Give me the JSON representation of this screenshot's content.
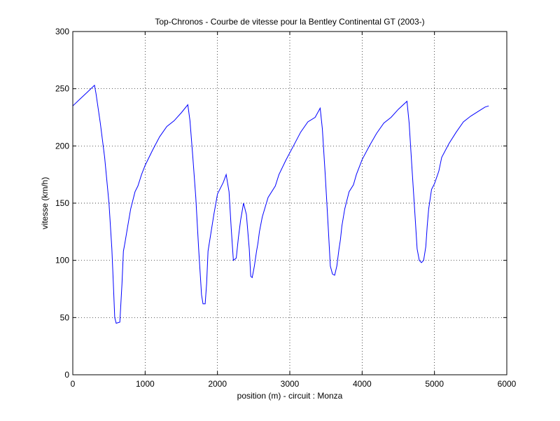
{
  "chart_data": {
    "type": "line",
    "title": "Top-Chronos - Courbe de vitesse pour la Bentley Continental GT (2003-)",
    "xlabel": "position (m) - circuit : Monza",
    "ylabel": "vitesse (km/h)",
    "xlim": [
      0,
      6000
    ],
    "ylim": [
      0,
      300
    ],
    "xticks": [
      0,
      1000,
      2000,
      3000,
      4000,
      5000,
      6000
    ],
    "yticks": [
      0,
      50,
      100,
      150,
      200,
      250,
      300
    ],
    "xtick_labels": [
      "0",
      "1000",
      "2000",
      "3000",
      "4000",
      "5000",
      "6000"
    ],
    "ytick_labels": [
      "0",
      "50",
      "100",
      "150",
      "200",
      "250",
      "300"
    ],
    "grid": true,
    "line_color": "#0000ff",
    "series": [
      {
        "x": [
          0,
          100,
          200,
          300,
          320,
          380,
          440,
          500,
          540,
          560,
          580,
          600,
          650,
          680,
          700,
          720,
          760,
          800,
          860,
          900,
          950,
          1000,
          1100,
          1200,
          1300,
          1400,
          1500,
          1590,
          1620,
          1660,
          1700,
          1740,
          1780,
          1800,
          1830,
          1850,
          1870,
          1900,
          1950,
          2000,
          2080,
          2120,
          2160,
          2190,
          2220,
          2260,
          2290,
          2320,
          2360,
          2400,
          2440,
          2460,
          2480,
          2510,
          2540,
          2560,
          2580,
          2620,
          2700,
          2800,
          2850,
          2950,
          3050,
          3150,
          3250,
          3350,
          3420,
          3450,
          3490,
          3530,
          3560,
          3590,
          3620,
          3650,
          3680,
          3700,
          3720,
          3760,
          3820,
          3880,
          3920,
          4000,
          4100,
          4200,
          4300,
          4400,
          4500,
          4620,
          4650,
          4690,
          4730,
          4760,
          4790,
          4820,
          4850,
          4880,
          4900,
          4920,
          4960,
          5000,
          5060,
          5100,
          5200,
          5300,
          5400,
          5500,
          5600,
          5700,
          5750
        ],
        "y": [
          235,
          241,
          247,
          253,
          246,
          220,
          190,
          150,
          110,
          80,
          50,
          45,
          46,
          80,
          108,
          115,
          130,
          145,
          160,
          165,
          175,
          183,
          196,
          208,
          217,
          222,
          229,
          236,
          222,
          190,
          155,
          110,
          70,
          62,
          62,
          80,
          108,
          120,
          140,
          158,
          168,
          175,
          160,
          128,
          100,
          102,
          120,
          135,
          150,
          140,
          110,
          86,
          85,
          95,
          108,
          115,
          125,
          138,
          155,
          165,
          175,
          188,
          200,
          212,
          221,
          225,
          233,
          215,
          175,
          130,
          95,
          88,
          87,
          95,
          110,
          118,
          130,
          145,
          160,
          166,
          175,
          188,
          200,
          211,
          220,
          225,
          232,
          239,
          220,
          180,
          140,
          110,
          100,
          98,
          100,
          112,
          130,
          145,
          162,
          167,
          178,
          190,
          202,
          212,
          221,
          226,
          230,
          234,
          235
        ]
      }
    ]
  }
}
